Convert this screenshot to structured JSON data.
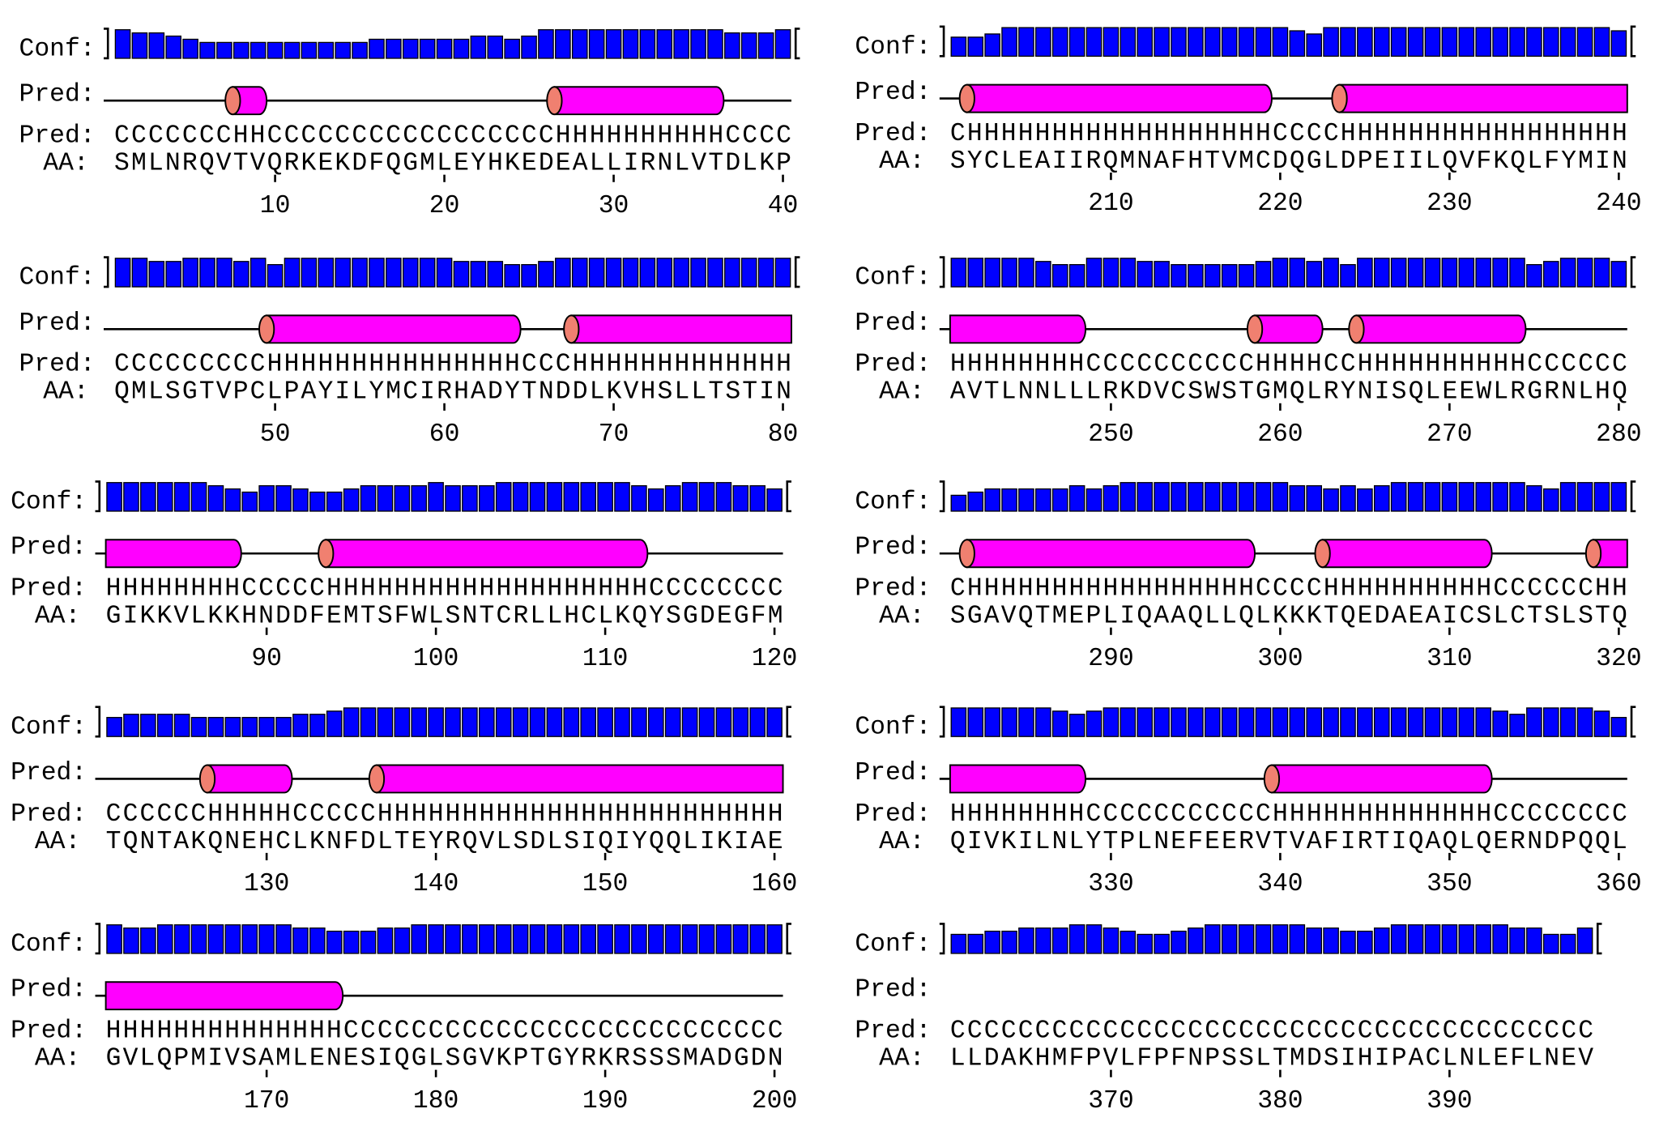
{
  "labels": {
    "conf": "Conf:",
    "pred": "Pred:",
    "aa": "AA:"
  },
  "blocks": [
    {
      "conf": [
        9,
        8,
        8,
        7,
        6,
        5,
        5,
        5,
        5,
        5,
        5,
        5,
        5,
        5,
        5,
        6,
        6,
        6,
        6,
        6,
        6,
        7,
        7,
        6,
        7,
        9,
        9,
        9,
        9,
        9,
        9,
        9,
        9,
        9,
        9,
        9,
        8,
        8,
        8,
        9
      ],
      "pred": "CCCCCCCHHCCCCCCCCCCCCCCCCCHHHHHHHHHHCCCC",
      "aa": "SMLNRQVTVQRKEKDFQGMLEYHKEDEALLIRNLVTDLKP",
      "ticks": [
        10,
        20,
        30,
        40
      ]
    },
    {
      "conf": [
        9,
        9,
        8,
        8,
        9,
        9,
        9,
        8,
        9,
        7,
        9,
        9,
        9,
        9,
        9,
        9,
        9,
        9,
        9,
        9,
        8,
        8,
        8,
        7,
        7,
        8,
        9,
        9,
        9,
        9,
        9,
        9,
        9,
        9,
        9,
        9,
        9,
        9,
        9,
        9
      ],
      "pred": "CCCCCCCCCHHHHHHHHHHHHHHHCCCHHHHHHHHHHHHH",
      "aa": "QMLSGTVPCLPAYILYMCIRHADYTNDDLKVHSLLTSTIN",
      "ticks": [
        50,
        60,
        70,
        80
      ]
    },
    {
      "conf": [
        9,
        9,
        9,
        9,
        9,
        9,
        8,
        7,
        6,
        8,
        8,
        7,
        6,
        6,
        7,
        8,
        8,
        8,
        8,
        9,
        8,
        8,
        8,
        9,
        9,
        9,
        9,
        9,
        9,
        9,
        9,
        8,
        7,
        8,
        9,
        9,
        9,
        8,
        8,
        7
      ],
      "pred": "HHHHHHHHCCCCCHHHHHHHHHHHHHHHHHHHCCCCCCCC",
      "aa": "GIKKVLKKHNDDFEMTSFWLSNTCRLLHCLKQYSGDEGFM",
      "ticks": [
        90,
        100,
        110,
        120
      ]
    },
    {
      "conf": [
        6,
        7,
        7,
        7,
        7,
        6,
        6,
        6,
        6,
        6,
        6,
        7,
        7,
        8,
        9,
        9,
        9,
        9,
        9,
        9,
        9,
        9,
        9,
        9,
        9,
        9,
        9,
        9,
        9,
        9,
        9,
        9,
        9,
        9,
        9,
        9,
        9,
        9,
        9,
        9
      ],
      "pred": "CCCCCCHHHHHCCCCCHHHHHHHHHHHHHHHHHHHHHHHH",
      "aa": "TQNTAKQNEHCLKNFDLTEYRQVLSDLSIQIYQQLIKIAE",
      "ticks": [
        130,
        140,
        150,
        160
      ]
    },
    {
      "conf": [
        9,
        8,
        8,
        9,
        9,
        9,
        9,
        9,
        9,
        9,
        9,
        8,
        8,
        7,
        7,
        7,
        8,
        8,
        9,
        9,
        9,
        9,
        9,
        9,
        9,
        9,
        9,
        9,
        9,
        9,
        9,
        9,
        9,
        9,
        9,
        9,
        9,
        9,
        9,
        9
      ],
      "pred": "HHHHHHHHHHHHHHCCCCCCCCCCCCCCCCCCCCCCCCCC",
      "aa": "GVLQPMIVSAMLENESIQGLSGVKPTGYRKRSSSMADGDN",
      "ticks": [
        170,
        180,
        190,
        200
      ]
    },
    {
      "conf": [
        6,
        6,
        7,
        9,
        9,
        9,
        9,
        9,
        9,
        9,
        9,
        9,
        9,
        9,
        9,
        9,
        9,
        9,
        9,
        9,
        8,
        7,
        9,
        9,
        9,
        9,
        9,
        9,
        9,
        9,
        9,
        9,
        9,
        9,
        9,
        9,
        9,
        9,
        9,
        8
      ],
      "pred": "CHHHHHHHHHHHHHHHHHHCCCCHHHHHHHHHHHHHHHHH",
      "aa": "SYCLEAIIRQMNAFHTVMCDQGLDPEIILQVFKQLFYMIN",
      "ticks": [
        210,
        220,
        230,
        240
      ]
    },
    {
      "conf": [
        9,
        9,
        9,
        9,
        9,
        8,
        7,
        7,
        9,
        9,
        9,
        8,
        8,
        7,
        7,
        7,
        7,
        7,
        8,
        9,
        9,
        8,
        9,
        7,
        9,
        9,
        9,
        9,
        9,
        9,
        9,
        9,
        9,
        9,
        7,
        8,
        9,
        9,
        9,
        8
      ],
      "pred": "HHHHHHHHCCCCCCCCCCHHHHCCHHHHHHHHHHCCCCCC",
      "aa": "AVTLNNLLLRKDVCSWSTGMQLRYNISQLEEWLRGRNLHQ",
      "ticks": [
        250,
        260,
        270,
        280
      ]
    },
    {
      "conf": [
        5,
        6,
        7,
        7,
        7,
        7,
        7,
        8,
        7,
        8,
        9,
        9,
        9,
        9,
        9,
        9,
        9,
        9,
        9,
        9,
        8,
        8,
        7,
        8,
        7,
        8,
        9,
        9,
        9,
        9,
        9,
        9,
        9,
        9,
        8,
        7,
        9,
        9,
        9,
        9
      ],
      "pred": "CHHHHHHHHHHHHHHHHHCCCCHHHHHHHHHHCCCCCCHH",
      "aa": "SGAVQTMEPLIQAAQLLQLKKKTQEDAEAICSLCTSLSTQ",
      "ticks": [
        290,
        300,
        310,
        320
      ]
    },
    {
      "conf": [
        9,
        9,
        9,
        9,
        9,
        9,
        8,
        7,
        8,
        9,
        9,
        9,
        9,
        9,
        9,
        9,
        9,
        9,
        9,
        9,
        9,
        9,
        9,
        9,
        9,
        9,
        9,
        9,
        9,
        9,
        9,
        9,
        8,
        7,
        9,
        9,
        9,
        9,
        8,
        6
      ],
      "pred": "HHHHHHHHCCCCCCCCCCCHHHHHHHHHHHHHCCCCCCCC",
      "aa": "QIVKILNLYTPLNEFEERVTVAFIRTIQAQLQERNDPQQL",
      "ticks": [
        330,
        340,
        350,
        360
      ]
    },
    {
      "conf": [
        6,
        6,
        7,
        7,
        8,
        8,
        8,
        9,
        9,
        8,
        7,
        6,
        6,
        7,
        8,
        9,
        9,
        9,
        9,
        9,
        9,
        8,
        8,
        7,
        7,
        8,
        9,
        9,
        9,
        9,
        9,
        9,
        9,
        8,
        8,
        6,
        6,
        8
      ],
      "pred": "CCCCCCCCCCCCCCCCCCCCCCCCCCCCCCCCCCCCCC",
      "aa": "LLDAKHMFPVLFPFNPSSLTMDSIHIPACLNLEFLNEV",
      "ticks": [
        370,
        380,
        390
      ]
    }
  ]
}
